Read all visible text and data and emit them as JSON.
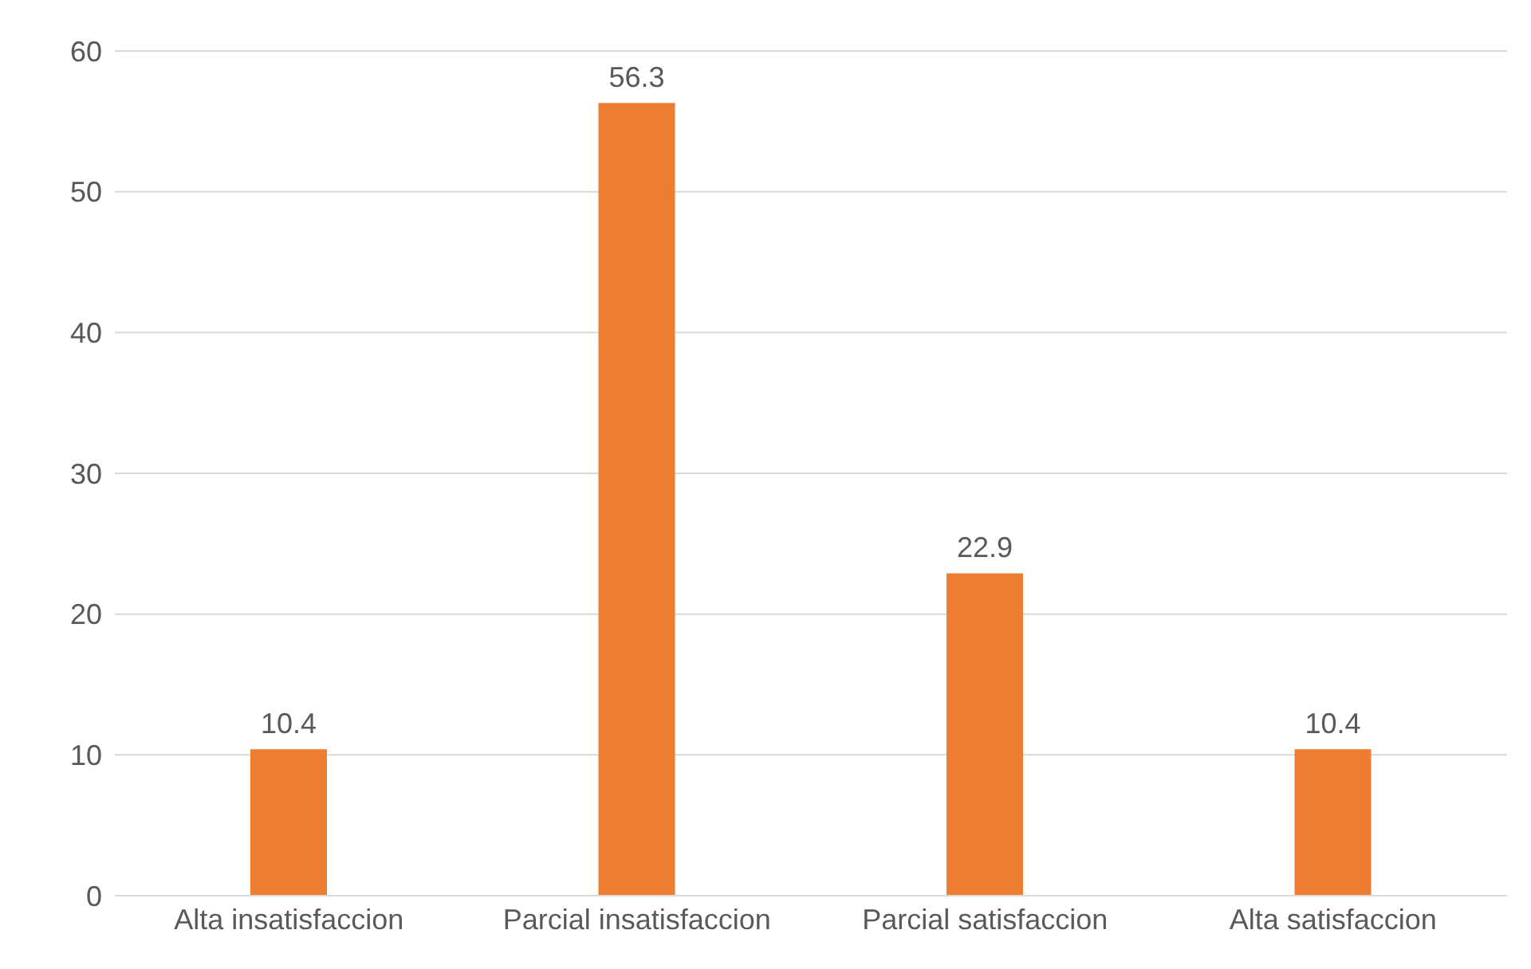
{
  "chart_data": {
    "type": "bar",
    "categories": [
      "Alta insatisfaccion",
      "Parcial insatisfaccion",
      "Parcial satisfaccion",
      "Alta satisfaccion"
    ],
    "values": [
      10.4,
      56.3,
      22.9,
      10.4
    ],
    "color": "#ed7d31",
    "ylim": [
      0,
      60
    ],
    "yticks": [
      0,
      10,
      20,
      30,
      40,
      50,
      60
    ],
    "grid": "y",
    "data_labels": true,
    "legend": false
  }
}
